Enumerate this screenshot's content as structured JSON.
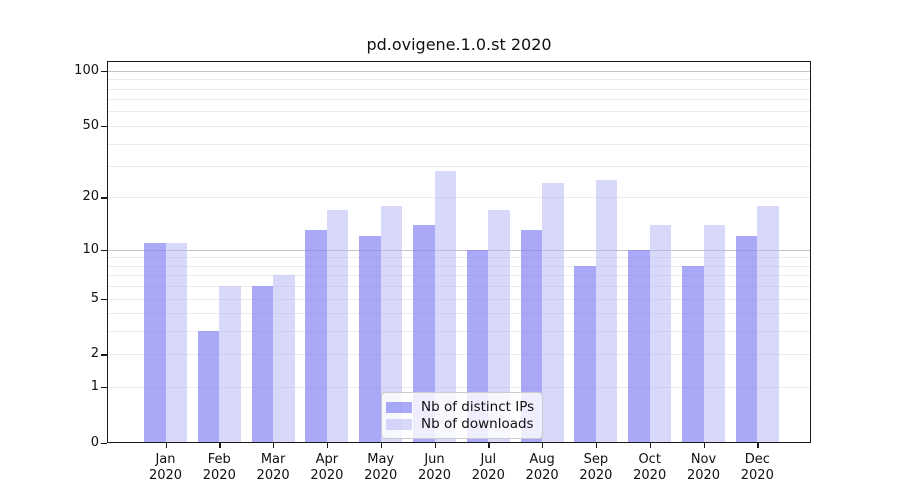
{
  "chart_data": {
    "type": "bar",
    "title": "pd.ovigene.1.0.st 2020",
    "categories": [
      "Jan",
      "Feb",
      "Mar",
      "Apr",
      "May",
      "Jun",
      "Jul",
      "Aug",
      "Sep",
      "Oct",
      "Nov",
      "Dec"
    ],
    "category_year": "2020",
    "series": [
      {
        "name": "Nb of distinct IPs",
        "color": "#a6a6f7",
        "values": [
          11,
          3,
          6,
          13,
          12,
          14,
          10,
          13,
          8,
          10,
          8,
          12
        ]
      },
      {
        "name": "Nb of downloads",
        "color": "#d9d9fa",
        "values": [
          11,
          6,
          7,
          17,
          18,
          28,
          17,
          24,
          25,
          14,
          14,
          18
        ]
      }
    ],
    "xlabel": "",
    "ylabel": "",
    "yscale": "log(value+1)",
    "yticks": [
      0,
      1,
      2,
      5,
      10,
      20,
      50,
      100
    ],
    "minor_gridlines": [
      1,
      2,
      3,
      4,
      5,
      6,
      7,
      8,
      9,
      20,
      30,
      40,
      50,
      60,
      70,
      80,
      90
    ],
    "major_gridlines": [
      10,
      100
    ],
    "ylim": [
      0,
      112
    ],
    "grid": "horizontal",
    "legend_position": "lower center"
  }
}
